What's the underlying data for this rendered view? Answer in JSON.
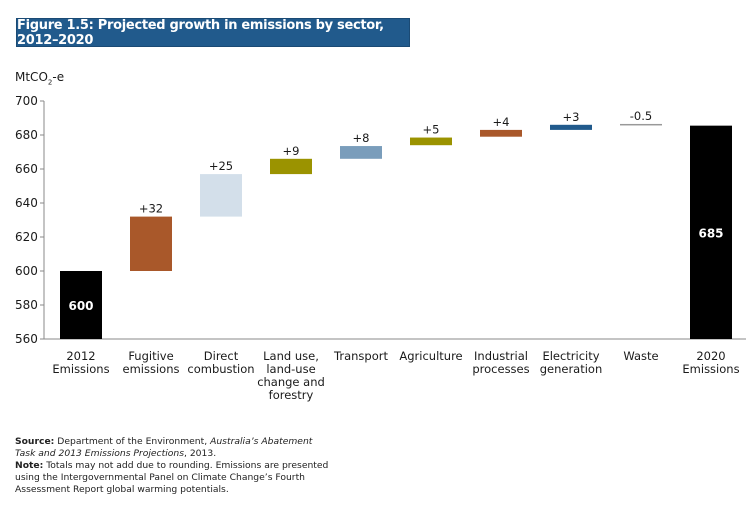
{
  "chart_data": {
    "type": "bar",
    "subtype": "waterfall",
    "title": "Figure 1.5: Projected growth in emissions by sector, 2012–2020",
    "ylabel": "MtCO2-e",
    "ylabel_main": "MtCO",
    "ylabel_sub": "2",
    "ylabel_suffix": "-e",
    "xlabel": "",
    "ylim": [
      560,
      700
    ],
    "yticks": [
      560,
      580,
      600,
      620,
      640,
      660,
      680,
      700
    ],
    "grid": false,
    "categories": [
      [
        "2012",
        "Emissions"
      ],
      [
        "Fugitive",
        "emissions"
      ],
      [
        "Direct",
        "combustion"
      ],
      [
        "Land use,",
        "land-use",
        "change and",
        "forestry"
      ],
      [
        "Transport"
      ],
      [
        "Agriculture"
      ],
      [
        "Industrial",
        "processes"
      ],
      [
        "Electricity",
        "generation"
      ],
      [
        "Waste"
      ],
      [
        "2020",
        "Emissions"
      ]
    ],
    "bars": [
      {
        "name": "2012 Emissions",
        "kind": "total",
        "start": 560,
        "end": 600,
        "label": "600",
        "color": "#000000"
      },
      {
        "name": "Fugitive emissions",
        "kind": "delta",
        "start": 600,
        "end": 632,
        "label": "+32",
        "color": "#a9582a"
      },
      {
        "name": "Direct combustion",
        "kind": "delta",
        "start": 632,
        "end": 657,
        "label": "+25",
        "color": "#d3dfea"
      },
      {
        "name": "Land use, land-use change and forestry",
        "kind": "delta",
        "start": 657,
        "end": 666,
        "label": "+9",
        "color": "#9b9300"
      },
      {
        "name": "Transport",
        "kind": "delta",
        "start": 666,
        "end": 673.5,
        "label": "+8",
        "color": "#7a9dbb"
      },
      {
        "name": "Agriculture",
        "kind": "delta",
        "start": 674,
        "end": 678.5,
        "label": "+5",
        "color": "#9b9300"
      },
      {
        "name": "Industrial processes",
        "kind": "delta",
        "start": 679,
        "end": 683,
        "label": "+4",
        "color": "#a9582a"
      },
      {
        "name": "Electricity generation",
        "kind": "delta",
        "start": 683,
        "end": 686,
        "label": "+3",
        "color": "#215a8c"
      },
      {
        "name": "Waste",
        "kind": "delta",
        "start": 686.5,
        "end": 686,
        "label": "-0.5",
        "color": "#999999"
      },
      {
        "name": "2020 Emissions",
        "kind": "total",
        "start": 560,
        "end": 685.5,
        "label": "685",
        "color": "#000000"
      }
    ]
  },
  "notes": {
    "source_label": "Source:",
    "source_text": " Department of the Environment, ",
    "source_italic": "Australia’s Abatement Task and 2013 Emissions Projections",
    "source_end": ", 2013.",
    "note_label": "Note:",
    "note_text": " Totals may not add due to rounding. Emissions are presented using the Intergovernmental Panel on Climate Change’s Fourth Assessment Report global warming potentials."
  }
}
